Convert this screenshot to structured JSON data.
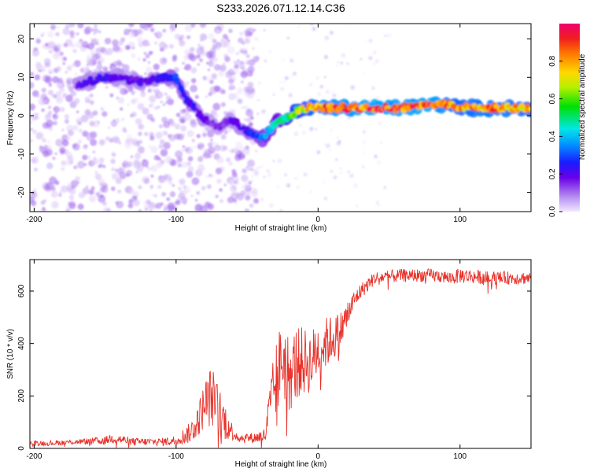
{
  "title": "S233.2026.071.12.14.C36",
  "chart_data": [
    {
      "type": "heatmap",
      "xlabel": "Height of straight line (km)",
      "ylabel": "Frequency (Hz)",
      "xlim": [
        -203,
        150
      ],
      "ylim": [
        -25,
        24
      ],
      "xticks": [
        -200,
        -100,
        0,
        100
      ],
      "yticks": [
        -20,
        -10,
        0,
        10,
        20
      ],
      "colorbar": {
        "label": "Normalized spectral amplitude",
        "range": [
          0,
          1
        ],
        "ticks": [
          "0.0",
          "0.2",
          "0.4",
          "0.6",
          "0.8"
        ]
      },
      "ridge": {
        "x": [
          -170,
          -160,
          -150,
          -140,
          -130,
          -120,
          -110,
          -100,
          -95,
          -90,
          -85,
          -80,
          -75,
          -70,
          -65,
          -60,
          -55,
          -50,
          -45,
          -40,
          -35,
          -30,
          -25,
          -20,
          -15,
          -10,
          -5,
          0,
          20,
          40,
          60,
          80,
          90,
          100,
          120,
          150
        ],
        "y": [
          8,
          9,
          10,
          10,
          9,
          9,
          10,
          10,
          6,
          3,
          1,
          -1,
          -2,
          -3,
          -2,
          -1,
          -3,
          -4,
          -5,
          -6,
          -4,
          -2,
          -1,
          0,
          1,
          2,
          2,
          2,
          2,
          2,
          2,
          3,
          3,
          2,
          2,
          2
        ],
        "amp": [
          0.2,
          0.2,
          0.25,
          0.2,
          0.2,
          0.2,
          0.25,
          0.3,
          0.25,
          0.25,
          0.2,
          0.2,
          0.15,
          0.15,
          0.15,
          0.2,
          0.2,
          0.25,
          0.3,
          0.35,
          0.4,
          0.45,
          0.5,
          0.6,
          0.7,
          0.75,
          0.8,
          0.85,
          0.9,
          0.95,
          0.9,
          0.95,
          0.85,
          0.8,
          0.85,
          0.8
        ]
      }
    },
    {
      "type": "line",
      "xlabel": "Height of straight line (km)",
      "ylabel": "SNR (10 * v/v)",
      "xlim": [
        -203,
        150
      ],
      "ylim": [
        0,
        720
      ],
      "xticks": [
        -200,
        -100,
        0,
        100
      ],
      "yticks": [
        0,
        200,
        400,
        600
      ],
      "series": [
        {
          "name": "SNR",
          "color": "#e8322a",
          "x": [
            -203,
            -190,
            -170,
            -150,
            -145,
            -130,
            -110,
            -100,
            -90,
            -85,
            -80,
            -75,
            -70,
            -65,
            -60,
            -55,
            -45,
            -37,
            -35,
            -30,
            -25,
            -20,
            -15,
            -10,
            -5,
            0,
            5,
            10,
            15,
            20,
            25,
            30,
            40,
            60,
            80,
            95,
            100,
            120,
            150
          ],
          "y": [
            20,
            20,
            25,
            30,
            40,
            25,
            25,
            30,
            60,
            100,
            170,
            200,
            140,
            100,
            60,
            40,
            40,
            50,
            120,
            250,
            350,
            280,
            330,
            330,
            330,
            380,
            400,
            420,
            440,
            500,
            560,
            600,
            650,
            660,
            660,
            650,
            660,
            650,
            650
          ],
          "noise": [
            10,
            10,
            10,
            15,
            20,
            15,
            15,
            20,
            40,
            60,
            90,
            120,
            100,
            70,
            30,
            20,
            20,
            30,
            90,
            150,
            160,
            150,
            140,
            130,
            120,
            110,
            100,
            90,
            80,
            60,
            40,
            30,
            25,
            25,
            25,
            25,
            30,
            25,
            25
          ]
        }
      ]
    }
  ]
}
